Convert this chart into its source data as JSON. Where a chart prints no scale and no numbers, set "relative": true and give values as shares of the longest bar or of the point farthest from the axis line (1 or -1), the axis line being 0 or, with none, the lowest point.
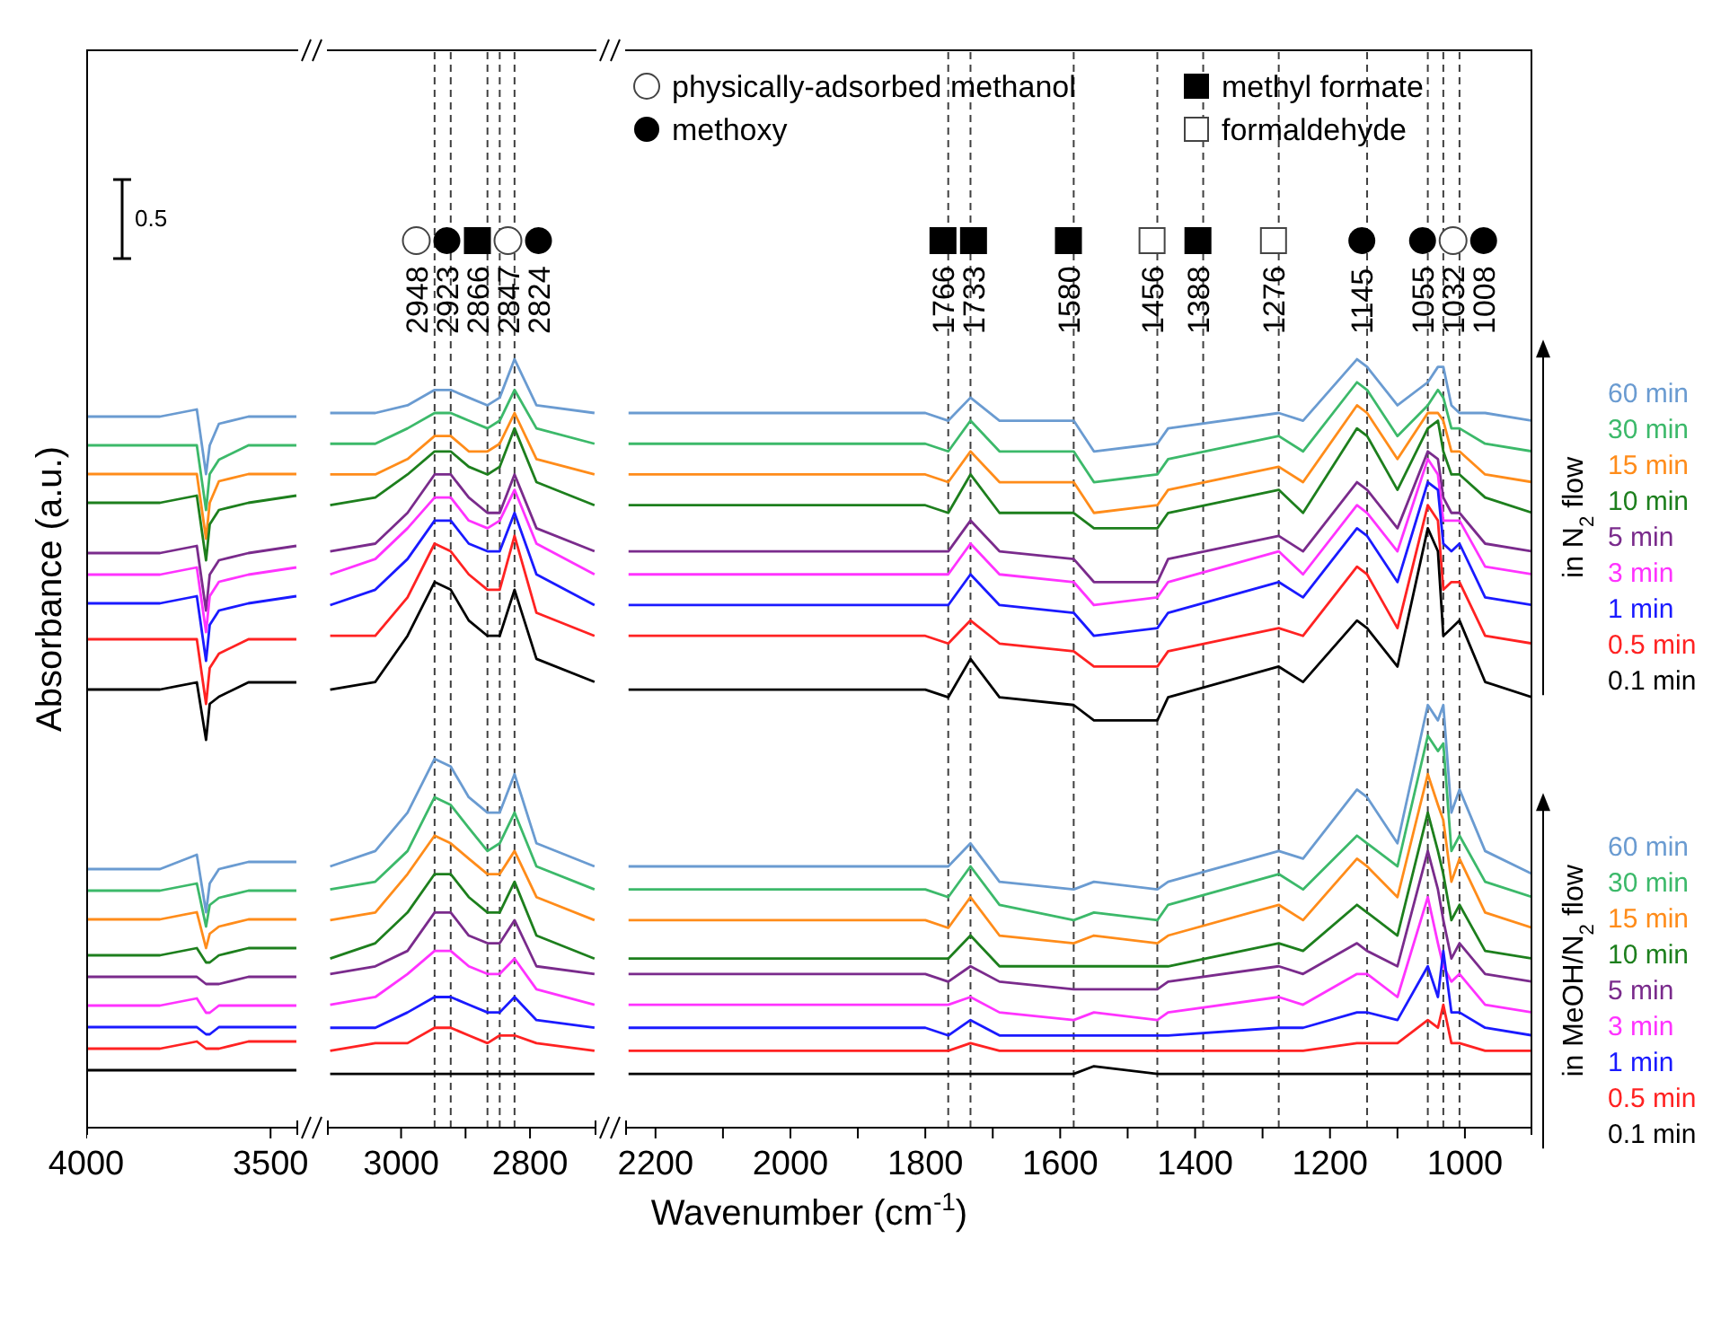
{
  "chart_data": [
    {
      "type": "line",
      "relative": true,
      "ylabel": "Absorbance (a.u.)",
      "annotations": [
        "0.5"
      ],
      "xlim": [
        4000,
        3425
      ],
      "xticks": [
        4000,
        3500
      ],
      "x": [
        4000,
        3800,
        3700,
        3675,
        3665,
        3640,
        3560,
        3430
      ],
      "series": [
        {
          "color": "#6a9bd1",
          "values": [
            0.99,
            0.99,
            1.0,
            0.91,
            0.95,
            0.98,
            0.99,
            0.99
          ]
        },
        {
          "color": "#3cb96a",
          "values": [
            0.95,
            0.95,
            0.95,
            0.86,
            0.91,
            0.93,
            0.95,
            0.95
          ]
        },
        {
          "color": "#ff8c1a",
          "values": [
            0.91,
            0.91,
            0.91,
            0.82,
            0.87,
            0.9,
            0.91,
            0.91
          ]
        },
        {
          "color": "#1d7f1d",
          "values": [
            0.87,
            0.87,
            0.88,
            0.79,
            0.84,
            0.86,
            0.87,
            0.88
          ]
        },
        {
          "color": "#7a2b8c",
          "values": [
            0.8,
            0.8,
            0.81,
            0.72,
            0.77,
            0.79,
            0.8,
            0.81
          ]
        },
        {
          "color": "#ff33ff",
          "values": [
            0.77,
            0.77,
            0.78,
            0.69,
            0.74,
            0.76,
            0.77,
            0.78
          ]
        },
        {
          "color": "#1a1aff",
          "values": [
            0.73,
            0.73,
            0.74,
            0.65,
            0.7,
            0.72,
            0.73,
            0.74
          ]
        },
        {
          "color": "#ff2222",
          "values": [
            0.68,
            0.68,
            0.68,
            0.59,
            0.64,
            0.66,
            0.68,
            0.68
          ]
        },
        {
          "color": "#000000",
          "values": [
            0.61,
            0.61,
            0.62,
            0.54,
            0.59,
            0.6,
            0.62,
            0.62
          ]
        },
        {
          "color": "#6a9bd1",
          "values": [
            0.36,
            0.36,
            0.38,
            0.3,
            0.34,
            0.36,
            0.37,
            0.37
          ]
        },
        {
          "color": "#3cb96a",
          "values": [
            0.33,
            0.33,
            0.34,
            0.28,
            0.31,
            0.32,
            0.33,
            0.33
          ]
        },
        {
          "color": "#ff8c1a",
          "values": [
            0.29,
            0.29,
            0.3,
            0.25,
            0.27,
            0.28,
            0.29,
            0.29
          ]
        },
        {
          "color": "#1d7f1d",
          "values": [
            0.24,
            0.24,
            0.25,
            0.23,
            0.23,
            0.24,
            0.25,
            0.25
          ]
        },
        {
          "color": "#7a2b8c",
          "values": [
            0.21,
            0.21,
            0.21,
            0.2,
            0.2,
            0.2,
            0.21,
            0.21
          ]
        },
        {
          "color": "#ff33ff",
          "values": [
            0.17,
            0.17,
            0.18,
            0.16,
            0.16,
            0.17,
            0.17,
            0.17
          ]
        },
        {
          "color": "#1a1aff",
          "values": [
            0.14,
            0.14,
            0.14,
            0.13,
            0.13,
            0.14,
            0.14,
            0.14
          ]
        },
        {
          "color": "#ff2222",
          "values": [
            0.11,
            0.11,
            0.12,
            0.11,
            0.11,
            0.11,
            0.12,
            0.12
          ]
        },
        {
          "color": "#000000",
          "values": [
            0.08,
            0.08,
            0.08,
            0.08,
            0.08,
            0.08,
            0.08,
            0.08
          ]
        }
      ]
    },
    {
      "type": "line",
      "relative": true,
      "xlabel": "Wavenumber (cm$^{-1}$)",
      "xlim": [
        3115,
        2697
      ],
      "xticks": [
        3000,
        {
          "value": 2900,
          "label": null
        },
        2800
      ],
      "x": [
        3110,
        3040,
        2990,
        2948,
        2923,
        2895,
        2866,
        2847,
        2824,
        2790,
        2700
      ],
      "ref_lines": [
        {
          "axis": "x",
          "value": 2948,
          "label": "2948",
          "color": "#404040",
          "line_style": "dashed"
        },
        {
          "axis": "x",
          "value": 2923,
          "label": "2923",
          "color": "#404040",
          "line_style": "dashed"
        },
        {
          "axis": "x",
          "value": 2866,
          "label": "2866",
          "color": "#404040",
          "line_style": "dashed"
        },
        {
          "axis": "x",
          "value": 2847,
          "label": "2847",
          "color": "#404040",
          "line_style": "dashed"
        },
        {
          "axis": "x",
          "value": 2824,
          "label": "2824",
          "color": "#404040",
          "line_style": "dashed"
        }
      ],
      "series": [
        {
          "color": "#6a9bd1",
          "values": [
            0.93,
            0.93,
            0.94,
            0.96,
            0.96,
            0.95,
            0.94,
            0.95,
            1.0,
            0.94,
            0.93
          ]
        },
        {
          "color": "#3cb96a",
          "values": [
            0.89,
            0.89,
            0.91,
            0.93,
            0.93,
            0.92,
            0.91,
            0.92,
            0.96,
            0.91,
            0.89
          ]
        },
        {
          "color": "#ff8c1a",
          "values": [
            0.85,
            0.85,
            0.87,
            0.9,
            0.9,
            0.88,
            0.88,
            0.89,
            0.93,
            0.87,
            0.85
          ]
        },
        {
          "color": "#1d7f1d",
          "values": [
            0.81,
            0.82,
            0.85,
            0.88,
            0.88,
            0.86,
            0.85,
            0.86,
            0.91,
            0.84,
            0.81
          ]
        },
        {
          "color": "#7a2b8c",
          "values": [
            0.75,
            0.76,
            0.8,
            0.85,
            0.85,
            0.82,
            0.8,
            0.8,
            0.85,
            0.78,
            0.75
          ]
        },
        {
          "color": "#ff33ff",
          "values": [
            0.72,
            0.74,
            0.78,
            0.82,
            0.82,
            0.79,
            0.78,
            0.79,
            0.83,
            0.76,
            0.72
          ]
        },
        {
          "color": "#1a1aff",
          "values": [
            0.68,
            0.7,
            0.74,
            0.79,
            0.79,
            0.76,
            0.75,
            0.75,
            0.8,
            0.72,
            0.68
          ]
        },
        {
          "color": "#ff2222",
          "values": [
            0.64,
            0.64,
            0.69,
            0.76,
            0.75,
            0.72,
            0.7,
            0.7,
            0.77,
            0.67,
            0.64
          ]
        },
        {
          "color": "#000000",
          "values": [
            0.57,
            0.58,
            0.64,
            0.71,
            0.7,
            0.66,
            0.64,
            0.64,
            0.7,
            0.61,
            0.58
          ]
        },
        {
          "color": "#6a9bd1",
          "values": [
            0.34,
            0.36,
            0.41,
            0.48,
            0.47,
            0.43,
            0.41,
            0.41,
            0.46,
            0.37,
            0.34
          ]
        },
        {
          "color": "#3cb96a",
          "values": [
            0.31,
            0.32,
            0.36,
            0.43,
            0.42,
            0.39,
            0.36,
            0.37,
            0.41,
            0.34,
            0.31
          ]
        },
        {
          "color": "#ff8c1a",
          "values": [
            0.27,
            0.28,
            0.33,
            0.38,
            0.37,
            0.35,
            0.33,
            0.33,
            0.36,
            0.3,
            0.27
          ]
        },
        {
          "color": "#1d7f1d",
          "values": [
            0.22,
            0.24,
            0.28,
            0.33,
            0.33,
            0.3,
            0.28,
            0.28,
            0.32,
            0.25,
            0.22
          ]
        },
        {
          "color": "#7a2b8c",
          "values": [
            0.2,
            0.21,
            0.23,
            0.28,
            0.28,
            0.25,
            0.24,
            0.24,
            0.27,
            0.21,
            0.2
          ]
        },
        {
          "color": "#ff33ff",
          "values": [
            0.16,
            0.17,
            0.2,
            0.23,
            0.23,
            0.21,
            0.2,
            0.2,
            0.22,
            0.18,
            0.16
          ]
        },
        {
          "color": "#1a1aff",
          "values": [
            0.13,
            0.13,
            0.15,
            0.17,
            0.17,
            0.16,
            0.15,
            0.15,
            0.17,
            0.14,
            0.13
          ]
        },
        {
          "color": "#ff2222",
          "values": [
            0.1,
            0.11,
            0.11,
            0.13,
            0.13,
            0.12,
            0.11,
            0.12,
            0.12,
            0.11,
            0.1
          ]
        },
        {
          "color": "#000000",
          "values": [
            0.07,
            0.07,
            0.07,
            0.07,
            0.07,
            0.07,
            0.07,
            0.07,
            0.07,
            0.07,
            0.07
          ]
        }
      ]
    },
    {
      "type": "line",
      "relative": true,
      "xlim": [
        2245,
        900
      ],
      "xticks": [
        2200,
        {
          "value": 2100,
          "label": null
        },
        2000,
        {
          "value": 1900,
          "label": null
        },
        1800,
        {
          "value": 1700,
          "label": null
        },
        1600,
        {
          "value": 1500,
          "label": null
        },
        1400,
        {
          "value": 1300,
          "label": null
        },
        1200,
        {
          "value": 1100,
          "label": null
        },
        1000
      ],
      "annotations": [
        "physically-adsorbed methanol",
        "methoxy",
        "methyl formate",
        "formaldehyde",
        "in N$_{2}$ flow",
        "in MeOH/N$_{2}$ flow"
      ],
      "x": [
        2240,
        1800,
        1766,
        1733,
        1690,
        1580,
        1550,
        1456,
        1440,
        1276,
        1240,
        1160,
        1145,
        1100,
        1055,
        1040,
        1032,
        1020,
        1008,
        970,
        900
      ],
      "ref_lines": [
        {
          "axis": "x",
          "value": 1766,
          "label": "1766",
          "color": "#404040",
          "line_style": "dashed"
        },
        {
          "axis": "x",
          "value": 1733,
          "label": "1733",
          "color": "#404040",
          "line_style": "dashed"
        },
        {
          "axis": "x",
          "value": 1580,
          "label": "1580",
          "color": "#404040",
          "line_style": "dashed"
        },
        {
          "axis": "x",
          "value": 1456,
          "label": "1456",
          "color": "#404040",
          "line_style": "dashed"
        },
        {
          "axis": "x",
          "value": 1388,
          "label": "1388",
          "color": "#404040",
          "line_style": "dashed"
        },
        {
          "axis": "x",
          "value": 1276,
          "label": "1276",
          "color": "#404040",
          "line_style": "dashed"
        },
        {
          "axis": "x",
          "value": 1145,
          "label": "1145",
          "color": "#404040",
          "line_style": "dashed"
        },
        {
          "axis": "x",
          "value": 1055,
          "label": "1055",
          "color": "#404040",
          "line_style": "dashed"
        },
        {
          "axis": "x",
          "value": 1032,
          "label": "1032",
          "color": "#404040",
          "line_style": "dashed"
        },
        {
          "axis": "x",
          "value": 1008,
          "label": "1008",
          "color": "#404040",
          "line_style": "dashed"
        }
      ],
      "series": [
        {
          "name": "60 min",
          "color": "#6a9bd1",
          "values": [
            0.93,
            0.93,
            0.92,
            0.95,
            0.92,
            0.92,
            0.88,
            0.89,
            0.91,
            0.93,
            0.92,
            1.0,
            0.99,
            0.94,
            0.97,
            0.99,
            0.99,
            0.94,
            0.93,
            0.93,
            0.92
          ]
        },
        {
          "name": "30 min",
          "color": "#3cb96a",
          "values": [
            0.89,
            0.89,
            0.88,
            0.92,
            0.88,
            0.88,
            0.84,
            0.85,
            0.87,
            0.9,
            0.88,
            0.97,
            0.96,
            0.9,
            0.94,
            0.96,
            0.95,
            0.91,
            0.91,
            0.89,
            0.88
          ]
        },
        {
          "name": "15 min",
          "color": "#ff8c1a",
          "values": [
            0.85,
            0.85,
            0.84,
            0.88,
            0.84,
            0.84,
            0.8,
            0.81,
            0.83,
            0.86,
            0.84,
            0.94,
            0.93,
            0.87,
            0.93,
            0.93,
            0.92,
            0.88,
            0.88,
            0.85,
            0.84
          ]
        },
        {
          "name": "10 min",
          "color": "#1d7f1d",
          "values": [
            0.81,
            0.81,
            0.8,
            0.85,
            0.8,
            0.8,
            0.78,
            0.78,
            0.8,
            0.83,
            0.8,
            0.91,
            0.9,
            0.83,
            0.91,
            0.92,
            0.88,
            0.85,
            0.85,
            0.82,
            0.8
          ]
        },
        {
          "name": "5 min",
          "color": "#7a2b8c",
          "values": [
            0.75,
            0.75,
            0.75,
            0.79,
            0.75,
            0.74,
            0.71,
            0.71,
            0.74,
            0.77,
            0.75,
            0.84,
            0.83,
            0.78,
            0.88,
            0.87,
            0.82,
            0.8,
            0.8,
            0.76,
            0.75
          ]
        },
        {
          "name": "3 min",
          "color": "#ff33ff",
          "values": [
            0.72,
            0.72,
            0.72,
            0.76,
            0.72,
            0.71,
            0.68,
            0.69,
            0.71,
            0.75,
            0.72,
            0.81,
            0.8,
            0.75,
            0.87,
            0.85,
            0.79,
            0.79,
            0.79,
            0.73,
            0.72
          ]
        },
        {
          "name": "1 min",
          "color": "#1a1aff",
          "values": [
            0.68,
            0.68,
            0.68,
            0.72,
            0.68,
            0.67,
            0.64,
            0.65,
            0.67,
            0.71,
            0.69,
            0.78,
            0.77,
            0.71,
            0.84,
            0.83,
            0.76,
            0.75,
            0.76,
            0.69,
            0.68
          ]
        },
        {
          "name": "0.5 min",
          "color": "#ff2222",
          "values": [
            0.64,
            0.64,
            0.63,
            0.66,
            0.63,
            0.62,
            0.6,
            0.6,
            0.62,
            0.65,
            0.64,
            0.73,
            0.72,
            0.65,
            0.81,
            0.79,
            0.7,
            0.71,
            0.71,
            0.64,
            0.63
          ]
        },
        {
          "name": "0.1 min",
          "color": "#000000",
          "values": [
            0.57,
            0.57,
            0.56,
            0.61,
            0.56,
            0.55,
            0.53,
            0.53,
            0.56,
            0.6,
            0.58,
            0.66,
            0.65,
            0.6,
            0.78,
            0.75,
            0.64,
            0.65,
            0.66,
            0.58,
            0.56
          ]
        },
        {
          "name": "60 min",
          "color": "#6a9bd1",
          "values": [
            0.34,
            0.34,
            0.34,
            0.37,
            0.32,
            0.31,
            0.32,
            0.31,
            0.32,
            0.36,
            0.35,
            0.44,
            0.43,
            0.37,
            0.55,
            0.53,
            0.55,
            0.41,
            0.44,
            0.36,
            0.33
          ]
        },
        {
          "name": "30 min",
          "color": "#3cb96a",
          "values": [
            0.31,
            0.31,
            0.3,
            0.34,
            0.29,
            0.27,
            0.28,
            0.27,
            0.29,
            0.33,
            0.31,
            0.38,
            0.37,
            0.34,
            0.51,
            0.49,
            0.5,
            0.36,
            0.38,
            0.32,
            0.3
          ]
        },
        {
          "name": "15 min",
          "color": "#ff8c1a",
          "values": [
            0.27,
            0.27,
            0.26,
            0.3,
            0.25,
            0.24,
            0.25,
            0.24,
            0.25,
            0.29,
            0.27,
            0.35,
            0.34,
            0.3,
            0.46,
            0.42,
            0.4,
            0.32,
            0.35,
            0.28,
            0.26
          ]
        },
        {
          "name": "10 min",
          "color": "#1d7f1d",
          "values": [
            0.22,
            0.22,
            0.22,
            0.25,
            0.21,
            0.21,
            0.21,
            0.21,
            0.21,
            0.24,
            0.23,
            0.29,
            0.28,
            0.25,
            0.41,
            0.36,
            0.33,
            0.27,
            0.29,
            0.23,
            0.22
          ]
        },
        {
          "name": "5 min",
          "color": "#7a2b8c",
          "values": [
            0.2,
            0.2,
            0.19,
            0.21,
            0.19,
            0.18,
            0.18,
            0.18,
            0.19,
            0.21,
            0.2,
            0.24,
            0.23,
            0.21,
            0.36,
            0.31,
            0.27,
            0.22,
            0.24,
            0.2,
            0.19
          ]
        },
        {
          "name": "3 min",
          "color": "#ff33ff",
          "values": [
            0.16,
            0.16,
            0.16,
            0.17,
            0.15,
            0.14,
            0.15,
            0.14,
            0.15,
            0.17,
            0.16,
            0.2,
            0.2,
            0.17,
            0.3,
            0.24,
            0.21,
            0.19,
            0.2,
            0.16,
            0.15
          ]
        },
        {
          "name": "1 min",
          "color": "#1a1aff",
          "values": [
            0.13,
            0.13,
            0.12,
            0.14,
            0.12,
            0.12,
            0.12,
            0.12,
            0.12,
            0.13,
            0.13,
            0.15,
            0.15,
            0.14,
            0.21,
            0.17,
            0.23,
            0.15,
            0.15,
            0.13,
            0.12
          ]
        },
        {
          "name": "0.5 min",
          "color": "#ff2222",
          "values": [
            0.1,
            0.1,
            0.1,
            0.11,
            0.1,
            0.1,
            0.1,
            0.1,
            0.1,
            0.1,
            0.1,
            0.11,
            0.11,
            0.11,
            0.14,
            0.13,
            0.16,
            0.11,
            0.11,
            0.1,
            0.1
          ]
        },
        {
          "name": "0.1 min",
          "color": "#000000",
          "values": [
            0.07,
            0.07,
            0.07,
            0.07,
            0.07,
            0.07,
            0.08,
            0.07,
            0.07,
            0.07,
            0.07,
            0.07,
            0.07,
            0.07,
            0.07,
            0.07,
            0.07,
            0.07,
            0.07,
            0.07,
            0.07
          ]
        }
      ]
    }
  ]
}
